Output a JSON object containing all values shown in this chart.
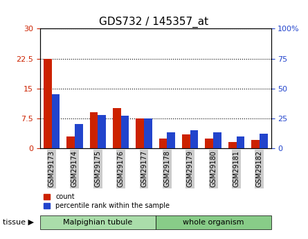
{
  "title": "GDS732 / 145357_at",
  "categories": [
    "GSM29173",
    "GSM29174",
    "GSM29175",
    "GSM29176",
    "GSM29177",
    "GSM29178",
    "GSM29179",
    "GSM29180",
    "GSM29181",
    "GSM29182"
  ],
  "count_values": [
    22.5,
    3.0,
    9.0,
    10.0,
    7.5,
    2.5,
    3.5,
    2.5,
    1.5,
    2.0
  ],
  "percentile_values": [
    45,
    20,
    28,
    27,
    25,
    13,
    15,
    13,
    10,
    12
  ],
  "count_color": "#cc2200",
  "percentile_color": "#2244cc",
  "ylim_left": [
    0,
    30
  ],
  "ylim_right": [
    0,
    100
  ],
  "yticks_left": [
    0,
    7.5,
    15,
    22.5,
    30
  ],
  "ytick_labels_left": [
    "0",
    "7.5",
    "15",
    "22.5",
    "30"
  ],
  "yticks_right": [
    0,
    25,
    50,
    75,
    100
  ],
  "ytick_labels_right": [
    "0",
    "25",
    "50",
    "75",
    "100%"
  ],
  "tissue_groups": [
    {
      "label": "Malpighian tubule",
      "start": 0,
      "end": 5,
      "color": "#aaddaa"
    },
    {
      "label": "whole organism",
      "start": 5,
      "end": 10,
      "color": "#88cc88"
    }
  ],
  "tissue_label": "tissue",
  "legend_items": [
    {
      "label": "count",
      "color": "#cc2200"
    },
    {
      "label": "percentile rank within the sample",
      "color": "#2244cc"
    }
  ],
  "bar_width": 0.35,
  "grid_color": "#000000",
  "bg_color": "#ffffff",
  "tick_label_bg": "#cccccc"
}
